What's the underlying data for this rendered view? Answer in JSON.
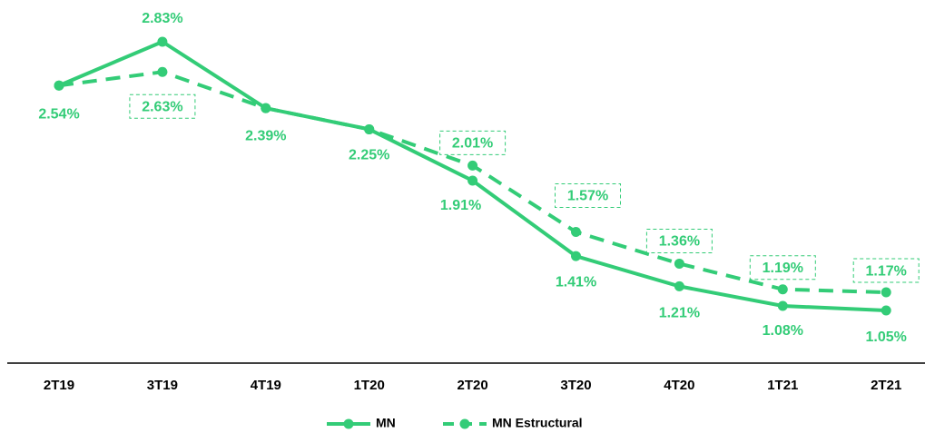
{
  "chart_data": {
    "type": "line",
    "categories": [
      "2T19",
      "3T19",
      "4T19",
      "1T20",
      "2T20",
      "3T20",
      "4T20",
      "1T21",
      "2T21"
    ],
    "series": [
      {
        "name": "MN",
        "color": "#33cc77",
        "dashed": false,
        "values": [
          2.54,
          2.83,
          2.39,
          2.25,
          1.91,
          1.41,
          1.21,
          1.08,
          1.05
        ],
        "value_labels": [
          "2.54%",
          "2.83%",
          "2.39%",
          "2.25%",
          "1.91%",
          "1.41%",
          "1.21%",
          "1.08%",
          "1.05%"
        ]
      },
      {
        "name": "MN Estructural",
        "color": "#33cc77",
        "dashed": true,
        "values": [
          2.54,
          2.63,
          2.39,
          2.25,
          2.01,
          1.57,
          1.36,
          1.19,
          1.17
        ],
        "value_labels": [
          null,
          "2.63%",
          null,
          null,
          "2.01%",
          "1.57%",
          "1.36%",
          "1.19%",
          "1.17%"
        ]
      }
    ],
    "legend": "bottom"
  }
}
